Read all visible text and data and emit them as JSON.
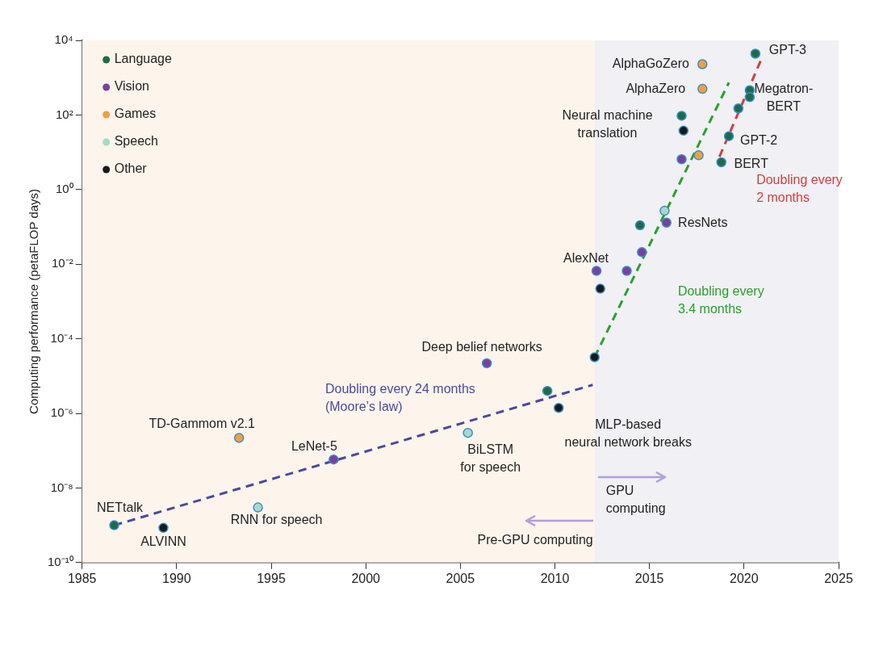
{
  "chart_data": {
    "type": "scatter",
    "ylabel": "Computing performance (petaFLOP days)",
    "xlim": [
      1985,
      2025
    ],
    "xticks": [
      1985,
      1990,
      1995,
      2000,
      2005,
      2010,
      2015,
      2020,
      2025
    ],
    "ylim": [
      1e-10,
      10000
    ],
    "log": "y",
    "yticks": [
      {
        "value": 1e-10,
        "label": "10⁻¹⁰"
      },
      {
        "value": 1e-08,
        "label": "10⁻⁸"
      },
      {
        "value": 1e-06,
        "label": "10⁻⁶"
      },
      {
        "value": 0.0001,
        "label": "10⁻⁴"
      },
      {
        "value": 0.01,
        "label": "10⁻²"
      },
      {
        "value": 1,
        "label": "10⁰"
      },
      {
        "value": 100,
        "label": "10²"
      },
      {
        "value": 10000,
        "label": "10⁴"
      }
    ],
    "grid": false,
    "legend": "top left",
    "line_style": "dashed",
    "series": [
      {
        "name": "Language",
        "marker": "circle",
        "color": "#1d6b4a",
        "x": [
          1986.7,
          2009.6,
          2014.5,
          2016.7,
          2018.8,
          2019.2,
          2019.7,
          2020.3,
          2020.3,
          2020.6
        ],
        "values": [
          1e-09,
          4e-06,
          0.11,
          95,
          5.4,
          27,
          150,
          460,
          300,
          4400
        ]
      },
      {
        "name": "Vision",
        "marker": "circle",
        "color": "#7b3f9e",
        "x": [
          1998.3,
          2006.4,
          2012.2,
          2013.8,
          2014.6,
          2015.9,
          2016.7
        ],
        "values": [
          5.8e-08,
          2.2e-05,
          0.0066,
          0.0066,
          0.021,
          0.13,
          6.5
        ]
      },
      {
        "name": "Games",
        "marker": "circle",
        "color": "#f0a040",
        "x": [
          1993.3,
          2017.6,
          2017.8,
          2017.8
        ],
        "values": [
          2.2e-07,
          8.3,
          2300,
          500
        ]
      },
      {
        "name": "Speech",
        "marker": "circle",
        "color": "#a8d8c8",
        "x": [
          1994.3,
          2005.4,
          2015.8
        ],
        "values": [
          3e-09,
          3e-07,
          0.27
        ]
      },
      {
        "name": "Other",
        "marker": "circle",
        "color": "#1a1a1a",
        "x": [
          1989.3,
          2010.2,
          2012.1,
          2012.4,
          2016.8
        ],
        "values": [
          8.5e-10,
          1.4e-06,
          3.2e-05,
          0.0022,
          38
        ]
      },
      {
        "name": "Doubling every 24 months\n(Moore’s law)",
        "type": "line",
        "color": "#4a4a9c",
        "x": [
          1986.7,
          2012.0
        ],
        "values": [
          1e-09,
          5.8e-06
        ]
      },
      {
        "name": "Doubling every\n3.4 months",
        "type": "line",
        "color": "#2aa02a",
        "x": [
          2012.1,
          2019.2
        ],
        "values": [
          3.2e-05,
          740
        ]
      },
      {
        "name": "Doubling every\n2 months",
        "type": "line",
        "color": "#d04040",
        "x": [
          2018.7,
          2020.9
        ],
        "values": [
          7.6,
          3000
        ]
      }
    ],
    "bands": [
      {
        "axis": "x",
        "from": 1985,
        "to": 2012.1,
        "label": "Pre-GPU computing",
        "color": "#fdf4ec"
      },
      {
        "axis": "x",
        "from": 2012.1,
        "to": 2025,
        "label": "GPU\ncomputing",
        "color": "#f0f0f5"
      }
    ],
    "annotations": [
      {
        "text": "NETtalk",
        "x": 1986.7,
        "y": 1e-09
      },
      {
        "text": "ALVINN",
        "x": 1989.3,
        "y": 8.5e-10
      },
      {
        "text": "RNN for speech",
        "x": 1994.3,
        "y": 3e-09
      },
      {
        "text": "TD-Gammom v2.1",
        "x": 1993.3,
        "y": 2.2e-07
      },
      {
        "text": "LeNet-5",
        "x": 1998.3,
        "y": 5.8e-08
      },
      {
        "text": "BiLSTM\nfor speech",
        "x": 2005.4,
        "y": 3e-07
      },
      {
        "text": "Deep belief networks",
        "x": 2006.4,
        "y": 2.2e-05
      },
      {
        "text": "MLP-based\nneural network breaks",
        "x": 2010.2,
        "y": 1.4e-06
      },
      {
        "text": "AlexNet",
        "x": 2012.2,
        "y": 0.0066
      },
      {
        "text": "ResNets",
        "x": 2015.9,
        "y": 0.13
      },
      {
        "text": "Neural machine\ntranslation",
        "x": 2016.7,
        "y": 95
      },
      {
        "text": "AlphaGoZero",
        "x": 2017.8,
        "y": 2300
      },
      {
        "text": "AlphaZero",
        "x": 2017.8,
        "y": 500
      },
      {
        "text": "GPT-3",
        "x": 2020.6,
        "y": 4400
      },
      {
        "text": "Megatron-\nBERT",
        "x": 2020.3,
        "y": 460
      },
      {
        "text": "GPT-2",
        "x": 2019.2,
        "y": 27
      },
      {
        "text": "BERT",
        "x": 2018.8,
        "y": 5.4
      }
    ]
  }
}
